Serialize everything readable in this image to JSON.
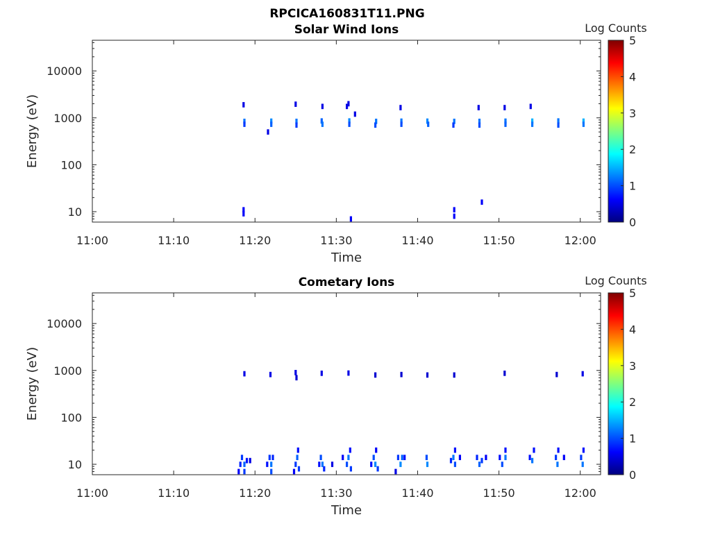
{
  "figure_title": "RPCICA160831T11.PNG",
  "colormap": [
    "#00007f",
    "#0000ff",
    "#007fff",
    "#00ffff",
    "#7fff7f",
    "#ffff00",
    "#ff7f00",
    "#ff0000",
    "#7f0000"
  ],
  "chart_data": [
    {
      "type": "heatmap",
      "title": "Solar Wind Ions",
      "xlabel": "Time",
      "ylabel": "Energy (eV)",
      "x_ticks": [
        "11:00",
        "11:10",
        "11:20",
        "11:30",
        "11:40",
        "11:50",
        "12:00"
      ],
      "x_range_minutes": [
        0,
        62.5
      ],
      "y_ticks": [
        "10",
        "100",
        "1000",
        "10000"
      ],
      "y_tick_values": [
        10,
        100,
        1000,
        10000
      ],
      "y_scale": "log",
      "y_range": [
        6,
        45000
      ],
      "colorbar_label": "Log Counts",
      "colorbar_ticks": [
        "0",
        "1",
        "2",
        "3",
        "4",
        "5"
      ],
      "colorbar_range": [
        0,
        5
      ],
      "grid": false,
      "cells": [
        {
          "t": 18.7,
          "e": 840,
          "v": 1.2
        },
        {
          "t": 18.7,
          "e": 730,
          "v": 0.9
        },
        {
          "t": 18.6,
          "e": 1900,
          "v": 0.5
        },
        {
          "t": 18.6,
          "e": 11,
          "v": 0.6
        },
        {
          "t": 18.6,
          "e": 9,
          "v": 0.6
        },
        {
          "t": 21.6,
          "e": 500,
          "v": 0.5
        },
        {
          "t": 22.0,
          "e": 850,
          "v": 1.3
        },
        {
          "t": 22.0,
          "e": 730,
          "v": 1.1
        },
        {
          "t": 25.0,
          "e": 1950,
          "v": 0.5
        },
        {
          "t": 25.1,
          "e": 840,
          "v": 1.2
        },
        {
          "t": 25.1,
          "e": 700,
          "v": 0.9
        },
        {
          "t": 28.3,
          "e": 1750,
          "v": 0.5
        },
        {
          "t": 28.2,
          "e": 860,
          "v": 1.1
        },
        {
          "t": 28.3,
          "e": 730,
          "v": 1.2
        },
        {
          "t": 31.3,
          "e": 1750,
          "v": 0.5
        },
        {
          "t": 31.5,
          "e": 2000,
          "v": 0.5
        },
        {
          "t": 32.3,
          "e": 1200,
          "v": 0.5
        },
        {
          "t": 31.6,
          "e": 860,
          "v": 1.3
        },
        {
          "t": 31.6,
          "e": 730,
          "v": 1.0
        },
        {
          "t": 31.8,
          "e": 7,
          "v": 0.6
        },
        {
          "t": 34.9,
          "e": 840,
          "v": 1.2
        },
        {
          "t": 34.8,
          "e": 700,
          "v": 1.0
        },
        {
          "t": 37.9,
          "e": 1650,
          "v": 0.5
        },
        {
          "t": 38.0,
          "e": 850,
          "v": 1.2
        },
        {
          "t": 38.0,
          "e": 730,
          "v": 1.0
        },
        {
          "t": 41.2,
          "e": 850,
          "v": 1.3
        },
        {
          "t": 41.3,
          "e": 730,
          "v": 1.1
        },
        {
          "t": 44.5,
          "e": 840,
          "v": 1.2
        },
        {
          "t": 44.4,
          "e": 700,
          "v": 0.9
        },
        {
          "t": 44.5,
          "e": 11,
          "v": 0.6
        },
        {
          "t": 44.5,
          "e": 8,
          "v": 0.6
        },
        {
          "t": 47.5,
          "e": 1650,
          "v": 0.5
        },
        {
          "t": 47.6,
          "e": 840,
          "v": 1.2
        },
        {
          "t": 47.6,
          "e": 700,
          "v": 1.0
        },
        {
          "t": 47.9,
          "e": 16,
          "v": 0.6
        },
        {
          "t": 50.7,
          "e": 1650,
          "v": 0.5
        },
        {
          "t": 50.8,
          "e": 850,
          "v": 1.2
        },
        {
          "t": 50.8,
          "e": 730,
          "v": 1.1
        },
        {
          "t": 53.9,
          "e": 1750,
          "v": 0.5
        },
        {
          "t": 54.1,
          "e": 850,
          "v": 1.5
        },
        {
          "t": 54.1,
          "e": 730,
          "v": 1.2
        },
        {
          "t": 57.3,
          "e": 860,
          "v": 1.2
        },
        {
          "t": 57.3,
          "e": 700,
          "v": 1.0
        },
        {
          "t": 60.4,
          "e": 850,
          "v": 1.5
        },
        {
          "t": 60.4,
          "e": 730,
          "v": 1.2
        }
      ]
    },
    {
      "type": "heatmap",
      "title": "Cometary Ions",
      "xlabel": "Time",
      "ylabel": "Energy (eV)",
      "x_ticks": [
        "11:00",
        "11:10",
        "11:20",
        "11:30",
        "11:40",
        "11:50",
        "12:00"
      ],
      "x_range_minutes": [
        0,
        62.5
      ],
      "y_ticks": [
        "10",
        "100",
        "1000",
        "10000"
      ],
      "y_tick_values": [
        10,
        100,
        1000,
        10000
      ],
      "y_scale": "log",
      "y_range": [
        6,
        45000
      ],
      "colorbar_label": "Log Counts",
      "colorbar_ticks": [
        "0",
        "1",
        "2",
        "3",
        "4",
        "5"
      ],
      "colorbar_range": [
        0,
        5
      ],
      "grid": false,
      "cells": [
        {
          "t": 18.7,
          "e": 850,
          "v": 0.5
        },
        {
          "t": 21.9,
          "e": 820,
          "v": 0.5
        },
        {
          "t": 25.0,
          "e": 900,
          "v": 0.5
        },
        {
          "t": 25.1,
          "e": 700,
          "v": 0.4
        },
        {
          "t": 28.2,
          "e": 870,
          "v": 0.5
        },
        {
          "t": 31.5,
          "e": 880,
          "v": 0.5
        },
        {
          "t": 34.8,
          "e": 800,
          "v": 0.4
        },
        {
          "t": 38.0,
          "e": 820,
          "v": 0.4
        },
        {
          "t": 41.2,
          "e": 800,
          "v": 0.4
        },
        {
          "t": 44.5,
          "e": 800,
          "v": 0.4
        },
        {
          "t": 50.7,
          "e": 870,
          "v": 0.4
        },
        {
          "t": 57.1,
          "e": 820,
          "v": 0.4
        },
        {
          "t": 60.3,
          "e": 850,
          "v": 0.5
        },
        {
          "t": 18.0,
          "e": 7,
          "v": 0.6
        },
        {
          "t": 18.2,
          "e": 10,
          "v": 0.8
        },
        {
          "t": 18.4,
          "e": 14,
          "v": 0.9
        },
        {
          "t": 18.7,
          "e": 10,
          "v": 1.1
        },
        {
          "t": 18.7,
          "e": 7,
          "v": 0.9
        },
        {
          "t": 19.0,
          "e": 12,
          "v": 0.7
        },
        {
          "t": 19.4,
          "e": 12,
          "v": 0.5
        },
        {
          "t": 21.5,
          "e": 10,
          "v": 0.7
        },
        {
          "t": 21.8,
          "e": 14,
          "v": 0.9
        },
        {
          "t": 22.0,
          "e": 10,
          "v": 1.2
        },
        {
          "t": 22.0,
          "e": 7,
          "v": 1.0
        },
        {
          "t": 22.2,
          "e": 14,
          "v": 0.8
        },
        {
          "t": 24.8,
          "e": 7,
          "v": 0.6
        },
        {
          "t": 25.0,
          "e": 10,
          "v": 0.9
        },
        {
          "t": 25.2,
          "e": 14,
          "v": 1.1
        },
        {
          "t": 25.3,
          "e": 20,
          "v": 0.7
        },
        {
          "t": 25.4,
          "e": 8,
          "v": 0.9
        },
        {
          "t": 27.9,
          "e": 10,
          "v": 0.7
        },
        {
          "t": 28.1,
          "e": 14,
          "v": 1.0
        },
        {
          "t": 28.3,
          "e": 10,
          "v": 1.2
        },
        {
          "t": 28.5,
          "e": 8,
          "v": 0.8
        },
        {
          "t": 29.5,
          "e": 10,
          "v": 0.5
        },
        {
          "t": 30.8,
          "e": 14,
          "v": 0.6
        },
        {
          "t": 31.3,
          "e": 10,
          "v": 1.0
        },
        {
          "t": 31.5,
          "e": 14,
          "v": 1.2
        },
        {
          "t": 31.7,
          "e": 20,
          "v": 0.7
        },
        {
          "t": 31.8,
          "e": 8,
          "v": 0.9
        },
        {
          "t": 34.3,
          "e": 10,
          "v": 0.7
        },
        {
          "t": 34.6,
          "e": 14,
          "v": 1.0
        },
        {
          "t": 34.8,
          "e": 10,
          "v": 1.3
        },
        {
          "t": 34.9,
          "e": 20,
          "v": 0.6
        },
        {
          "t": 35.1,
          "e": 8,
          "v": 0.9
        },
        {
          "t": 37.3,
          "e": 7,
          "v": 0.5
        },
        {
          "t": 37.6,
          "e": 14,
          "v": 0.9
        },
        {
          "t": 37.9,
          "e": 10,
          "v": 1.3
        },
        {
          "t": 38.1,
          "e": 14,
          "v": 1.1
        },
        {
          "t": 38.4,
          "e": 14,
          "v": 0.7
        },
        {
          "t": 41.1,
          "e": 14,
          "v": 1.0
        },
        {
          "t": 41.2,
          "e": 10,
          "v": 1.3
        },
        {
          "t": 44.1,
          "e": 12,
          "v": 0.8
        },
        {
          "t": 44.4,
          "e": 14,
          "v": 1.2
        },
        {
          "t": 44.6,
          "e": 10,
          "v": 1.0
        },
        {
          "t": 44.6,
          "e": 20,
          "v": 0.7
        },
        {
          "t": 45.2,
          "e": 14,
          "v": 0.6
        },
        {
          "t": 47.3,
          "e": 14,
          "v": 0.8
        },
        {
          "t": 47.6,
          "e": 10,
          "v": 1.1
        },
        {
          "t": 47.9,
          "e": 12,
          "v": 0.9
        },
        {
          "t": 48.4,
          "e": 14,
          "v": 0.6
        },
        {
          "t": 50.1,
          "e": 14,
          "v": 0.7
        },
        {
          "t": 50.4,
          "e": 10,
          "v": 1.0
        },
        {
          "t": 50.8,
          "e": 14,
          "v": 1.2
        },
        {
          "t": 50.8,
          "e": 20,
          "v": 0.7
        },
        {
          "t": 53.8,
          "e": 14,
          "v": 0.7
        },
        {
          "t": 54.1,
          "e": 12,
          "v": 1.2
        },
        {
          "t": 54.3,
          "e": 20,
          "v": 0.7
        },
        {
          "t": 57.0,
          "e": 14,
          "v": 0.9
        },
        {
          "t": 57.2,
          "e": 10,
          "v": 1.2
        },
        {
          "t": 57.3,
          "e": 20,
          "v": 0.7
        },
        {
          "t": 58.0,
          "e": 14,
          "v": 0.6
        },
        {
          "t": 60.1,
          "e": 14,
          "v": 0.9
        },
        {
          "t": 60.3,
          "e": 10,
          "v": 1.2
        },
        {
          "t": 60.4,
          "e": 20,
          "v": 0.7
        }
      ]
    }
  ]
}
